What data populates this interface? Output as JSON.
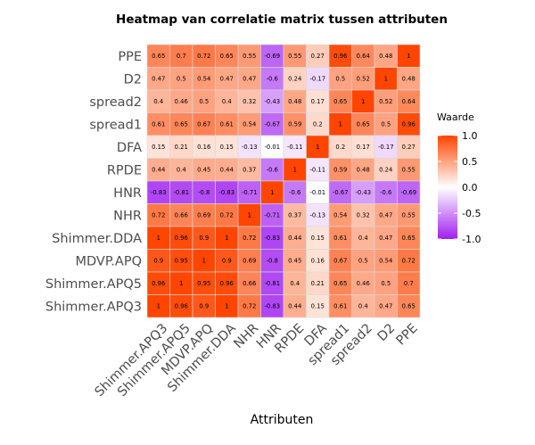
{
  "chart_data": {
    "type": "heatmap",
    "title": "Heatmap van correlatie matrix tussen attributen",
    "xlabel": "Attributen",
    "ylabel": "",
    "x_categories": [
      "Shimmer.APQ3",
      "Shimmer.APQ5",
      "MDVP.APQ",
      "Shimmer.DDA",
      "NHR",
      "HNR",
      "RPDE",
      "DFA",
      "spread1",
      "spread2",
      "D2",
      "PPE"
    ],
    "y_categories": [
      "PPE",
      "D2",
      "spread2",
      "spread1",
      "DFA",
      "RPDE",
      "HNR",
      "NHR",
      "Shimmer.DDA",
      "MDVP.APQ",
      "Shimmer.APQ5",
      "Shimmer.APQ3"
    ],
    "values": [
      [
        0.65,
        0.7,
        0.72,
        0.65,
        0.55,
        -0.69,
        0.55,
        0.27,
        0.96,
        0.64,
        0.48,
        1
      ],
      [
        0.47,
        0.5,
        0.54,
        0.47,
        0.47,
        -0.6,
        0.24,
        -0.17,
        0.5,
        0.52,
        1,
        0.48
      ],
      [
        0.4,
        0.46,
        0.5,
        0.4,
        0.32,
        -0.43,
        0.48,
        0.17,
        0.65,
        1,
        0.52,
        0.64
      ],
      [
        0.61,
        0.65,
        0.67,
        0.61,
        0.54,
        -0.67,
        0.59,
        0.2,
        1,
        0.65,
        0.5,
        0.96
      ],
      [
        0.15,
        0.21,
        0.16,
        0.15,
        -0.13,
        -0.01,
        -0.11,
        1,
        0.2,
        0.17,
        -0.17,
        0.27
      ],
      [
        0.44,
        0.4,
        0.45,
        0.44,
        0.37,
        -0.6,
        1,
        -0.11,
        0.59,
        0.48,
        0.24,
        0.55
      ],
      [
        -0.83,
        -0.81,
        -0.8,
        -0.83,
        -0.71,
        1,
        -0.6,
        -0.01,
        -0.67,
        -0.43,
        -0.6,
        -0.69
      ],
      [
        0.72,
        0.66,
        0.69,
        0.72,
        1,
        -0.71,
        0.37,
        -0.13,
        0.54,
        0.32,
        0.47,
        0.55
      ],
      [
        1,
        0.96,
        0.9,
        1,
        0.72,
        -0.83,
        0.44,
        0.15,
        0.61,
        0.4,
        0.47,
        0.65
      ],
      [
        0.9,
        0.95,
        1,
        0.9,
        0.69,
        -0.8,
        0.45,
        0.16,
        0.67,
        0.5,
        0.54,
        0.72
      ],
      [
        0.96,
        1,
        0.95,
        0.96,
        0.66,
        -0.81,
        0.4,
        0.21,
        0.65,
        0.46,
        0.5,
        0.7
      ],
      [
        1,
        0.96,
        0.9,
        1,
        0.72,
        -0.83,
        0.44,
        0.15,
        0.61,
        0.4,
        0.47,
        0.65
      ]
    ],
    "color_scale": {
      "low": "#a020f0",
      "mid": "#ffffff",
      "high": "#ff4500",
      "limits": [
        -1,
        1
      ]
    },
    "legend": {
      "title": "Waarde",
      "ticks": [
        1.0,
        0.5,
        0.0,
        -0.5,
        -1.0
      ],
      "tick_labels": [
        "1.0",
        "0.5",
        "0.0",
        "-0.5",
        "-1.0"
      ],
      "placement": "right"
    },
    "grid": false
  }
}
